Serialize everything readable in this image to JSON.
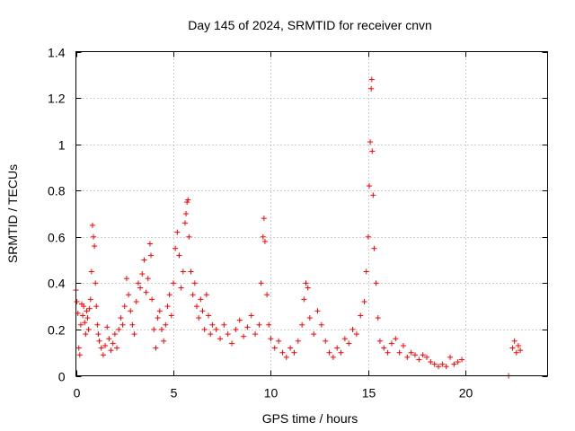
{
  "chart_data": {
    "type": "scatter",
    "title": "Day 145 of 2024, SRMTID for receiver cnvn",
    "xlabel": "GPS time / hours",
    "ylabel": "SRMTID / TECUs",
    "xlim": [
      0,
      24.2
    ],
    "ylim": [
      0,
      1.4
    ],
    "xticks": [
      0,
      5,
      10,
      15,
      20
    ],
    "yticks": [
      0,
      0.2,
      0.4,
      0.6,
      0.8,
      1,
      1.2,
      1.4
    ],
    "xtick_labels": [
      "0",
      "5",
      "10",
      "15",
      "20"
    ],
    "ytick_labels": [
      "0",
      "0.2",
      "0.4",
      "0.6",
      "0.8",
      "1",
      "1.2",
      "1.4"
    ],
    "grid": true,
    "marker": "+",
    "color": "#ff0000",
    "series": [
      {
        "name": "SRMTID",
        "points": [
          [
            0.0,
            0.37
          ],
          [
            0.05,
            0.32
          ],
          [
            0.1,
            0.27
          ],
          [
            0.15,
            0.12
          ],
          [
            0.2,
            0.09
          ],
          [
            0.25,
            0.22
          ],
          [
            0.3,
            0.31
          ],
          [
            0.35,
            0.26
          ],
          [
            0.4,
            0.3
          ],
          [
            0.45,
            0.23
          ],
          [
            0.5,
            0.18
          ],
          [
            0.55,
            0.28
          ],
          [
            0.6,
            0.25
          ],
          [
            0.65,
            0.2
          ],
          [
            0.7,
            0.29
          ],
          [
            0.75,
            0.33
          ],
          [
            0.8,
            0.45
          ],
          [
            0.85,
            0.65
          ],
          [
            0.9,
            0.6
          ],
          [
            0.95,
            0.56
          ],
          [
            1.0,
            0.4
          ],
          [
            1.05,
            0.3
          ],
          [
            1.1,
            0.22
          ],
          [
            1.15,
            0.18
          ],
          [
            1.2,
            0.15
          ],
          [
            1.3,
            0.12
          ],
          [
            1.4,
            0.09
          ],
          [
            1.5,
            0.13
          ],
          [
            1.6,
            0.21
          ],
          [
            1.7,
            0.16
          ],
          [
            1.8,
            0.11
          ],
          [
            1.9,
            0.14
          ],
          [
            2.0,
            0.18
          ],
          [
            2.1,
            0.12
          ],
          [
            2.2,
            0.2
          ],
          [
            2.3,
            0.25
          ],
          [
            2.4,
            0.22
          ],
          [
            2.5,
            0.3
          ],
          [
            2.6,
            0.42
          ],
          [
            2.7,
            0.35
          ],
          [
            2.8,
            0.28
          ],
          [
            2.9,
            0.22
          ],
          [
            3.0,
            0.18
          ],
          [
            3.1,
            0.32
          ],
          [
            3.2,
            0.4
          ],
          [
            3.3,
            0.38
          ],
          [
            3.4,
            0.44
          ],
          [
            3.5,
            0.5
          ],
          [
            3.6,
            0.36
          ],
          [
            3.7,
            0.42
          ],
          [
            3.8,
            0.57
          ],
          [
            3.85,
            0.52
          ],
          [
            3.9,
            0.33
          ],
          [
            4.0,
            0.2
          ],
          [
            4.1,
            0.12
          ],
          [
            4.2,
            0.25
          ],
          [
            4.3,
            0.28
          ],
          [
            4.4,
            0.2
          ],
          [
            4.5,
            0.15
          ],
          [
            4.6,
            0.22
          ],
          [
            4.7,
            0.3
          ],
          [
            4.8,
            0.35
          ],
          [
            4.9,
            0.26
          ],
          [
            5.0,
            0.4
          ],
          [
            5.1,
            0.55
          ],
          [
            5.2,
            0.62
          ],
          [
            5.3,
            0.52
          ],
          [
            5.4,
            0.38
          ],
          [
            5.5,
            0.45
          ],
          [
            5.6,
            0.66
          ],
          [
            5.65,
            0.7
          ],
          [
            5.7,
            0.75
          ],
          [
            5.75,
            0.76
          ],
          [
            5.8,
            0.6
          ],
          [
            5.9,
            0.45
          ],
          [
            6.0,
            0.35
          ],
          [
            6.1,
            0.4
          ],
          [
            6.2,
            0.3
          ],
          [
            6.3,
            0.25
          ],
          [
            6.4,
            0.33
          ],
          [
            6.5,
            0.28
          ],
          [
            6.6,
            0.2
          ],
          [
            6.7,
            0.35
          ],
          [
            6.8,
            0.26
          ],
          [
            6.9,
            0.18
          ],
          [
            7.0,
            0.22
          ],
          [
            7.2,
            0.2
          ],
          [
            7.4,
            0.16
          ],
          [
            7.6,
            0.22
          ],
          [
            7.8,
            0.18
          ],
          [
            8.0,
            0.14
          ],
          [
            8.2,
            0.2
          ],
          [
            8.4,
            0.24
          ],
          [
            8.6,
            0.17
          ],
          [
            8.8,
            0.21
          ],
          [
            9.0,
            0.26
          ],
          [
            9.2,
            0.18
          ],
          [
            9.4,
            0.22
          ],
          [
            9.5,
            0.4
          ],
          [
            9.6,
            0.6
          ],
          [
            9.65,
            0.68
          ],
          [
            9.7,
            0.58
          ],
          [
            9.8,
            0.35
          ],
          [
            9.9,
            0.22
          ],
          [
            10.0,
            0.16
          ],
          [
            10.2,
            0.12
          ],
          [
            10.4,
            0.15
          ],
          [
            10.6,
            0.1
          ],
          [
            10.8,
            0.08
          ],
          [
            11.0,
            0.12
          ],
          [
            11.2,
            0.1
          ],
          [
            11.4,
            0.15
          ],
          [
            11.6,
            0.22
          ],
          [
            11.7,
            0.33
          ],
          [
            11.8,
            0.4
          ],
          [
            11.9,
            0.38
          ],
          [
            12.0,
            0.25
          ],
          [
            12.2,
            0.18
          ],
          [
            12.4,
            0.28
          ],
          [
            12.6,
            0.22
          ],
          [
            12.8,
            0.15
          ],
          [
            13.0,
            0.1
          ],
          [
            13.2,
            0.08
          ],
          [
            13.4,
            0.12
          ],
          [
            13.6,
            0.1
          ],
          [
            13.8,
            0.16
          ],
          [
            14.0,
            0.14
          ],
          [
            14.2,
            0.2
          ],
          [
            14.4,
            0.18
          ],
          [
            14.6,
            0.26
          ],
          [
            14.8,
            0.32
          ],
          [
            14.9,
            0.45
          ],
          [
            15.0,
            0.6
          ],
          [
            15.05,
            0.82
          ],
          [
            15.1,
            1.01
          ],
          [
            15.15,
            1.24
          ],
          [
            15.18,
            1.28
          ],
          [
            15.2,
            0.97
          ],
          [
            15.25,
            0.78
          ],
          [
            15.3,
            0.55
          ],
          [
            15.4,
            0.4
          ],
          [
            15.5,
            0.25
          ],
          [
            15.6,
            0.15
          ],
          [
            15.8,
            0.12
          ],
          [
            16.0,
            0.1
          ],
          [
            16.2,
            0.14
          ],
          [
            16.4,
            0.16
          ],
          [
            16.6,
            0.1
          ],
          [
            16.8,
            0.13
          ],
          [
            17.0,
            0.08
          ],
          [
            17.2,
            0.1
          ],
          [
            17.4,
            0.09
          ],
          [
            17.6,
            0.07
          ],
          [
            17.8,
            0.09
          ],
          [
            18.0,
            0.08
          ],
          [
            18.2,
            0.06
          ],
          [
            18.4,
            0.05
          ],
          [
            18.6,
            0.04
          ],
          [
            18.8,
            0.05
          ],
          [
            19.0,
            0.04
          ],
          [
            19.2,
            0.08
          ],
          [
            19.4,
            0.05
          ],
          [
            19.6,
            0.06
          ],
          [
            19.8,
            0.07
          ],
          [
            22.2,
            0.0
          ],
          [
            22.4,
            0.12
          ],
          [
            22.5,
            0.15
          ],
          [
            22.6,
            0.1
          ],
          [
            22.7,
            0.13
          ],
          [
            22.8,
            0.11
          ]
        ]
      }
    ]
  }
}
